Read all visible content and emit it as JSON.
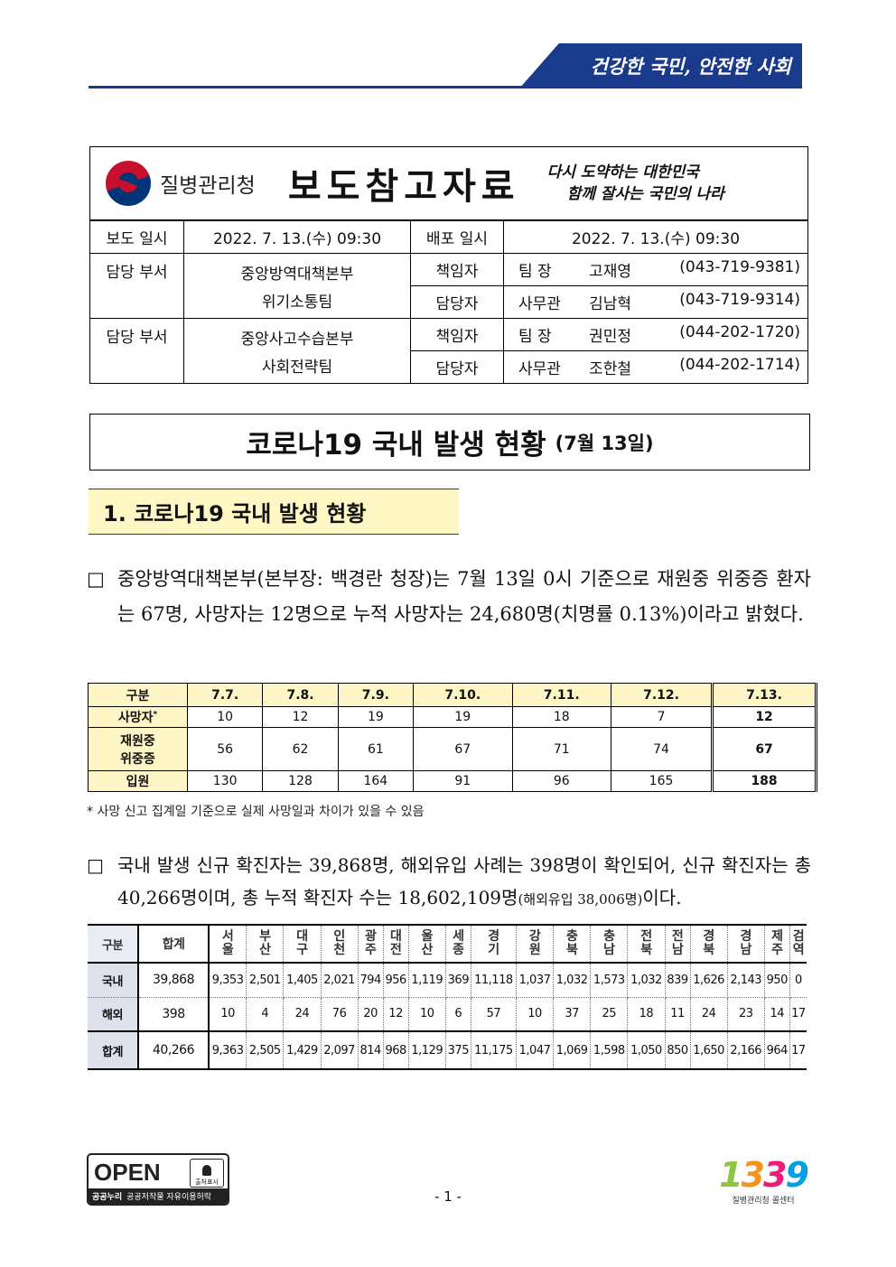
{
  "slogan": "건강한 국민, 안전한 사회",
  "header": {
    "agency": "질병관리청",
    "doc_type": "보도참고자료",
    "motto_line1": "다시 도약하는 대한민국",
    "motto_line2": "함께 잘사는 국민의 나라"
  },
  "info": {
    "report_label": "보도 일시",
    "report_time": "2022. 7. 13.(수) 09:30",
    "dist_label": "배포 일시",
    "dist_time": "2022. 7. 13.(수) 09:30",
    "dept_label": "담당 부서",
    "dept1_line1": "중앙방역대책본부",
    "dept1_line2": "위기소통팀",
    "dept2_line1": "중앙사고수습본부",
    "dept2_line2": "사회전략팀",
    "resp_label": "책임자",
    "staff_label": "담당자",
    "contacts": [
      {
        "title": "팀  장",
        "name": "고재영",
        "phone": "(043-719-9381)"
      },
      {
        "title": "사무관",
        "name": "김남혁",
        "phone": "(043-719-9314)"
      },
      {
        "title": "팀  장",
        "name": "권민정",
        "phone": "(044-202-1720)"
      },
      {
        "title": "사무관",
        "name": "조한철",
        "phone": "(044-202-1714)"
      }
    ]
  },
  "main_title": "코로나19 국내 발생 현황",
  "main_date": "(7월 13일)",
  "section1": "1. 코로나19 국내 발생 현황",
  "bullet": "□",
  "para1": "중앙방역대책본부(본부장: 백경란 청장)는 7월 13일 0시 기준으로 재원중 위중증 환자는 67명, 사망자는 12명으로 누적 사망자는 24,680명(치명률 0.13%)이라고 밝혔다.",
  "stat_table": {
    "header": [
      "구분",
      "7.7.",
      "7.8.",
      "7.9.",
      "7.10.",
      "7.11.",
      "7.12.",
      "7.13."
    ],
    "rows": [
      {
        "label": "사망자",
        "mark": "*",
        "values": [
          "10",
          "12",
          "19",
          "19",
          "18",
          "7",
          "12"
        ]
      },
      {
        "label1": "재원중",
        "label2": "위중증",
        "values": [
          "56",
          "62",
          "61",
          "67",
          "71",
          "74",
          "67"
        ]
      },
      {
        "label": "입원",
        "values": [
          "130",
          "128",
          "164",
          "91",
          "96",
          "165",
          "188"
        ]
      }
    ]
  },
  "footnote": "* 사망 신고 집계일 기준으로 실제 사망일과 차이가 있을 수 있음",
  "para2_main": "국내 발생 신규 확진자는 39,868명, 해외유입 사례는 398명이 확인되어, 신규 확진자는 총 40,266명이며, 총 누적 확진자 수는 18,602,109명",
  "para2_small": "(해외유입 38,006명)",
  "para2_end": "이다.",
  "regional": {
    "label_col": "구분",
    "total_col": "합계",
    "regions": [
      [
        "서",
        "울"
      ],
      [
        "부",
        "산"
      ],
      [
        "대",
        "구"
      ],
      [
        "인",
        "천"
      ],
      [
        "광",
        "주"
      ],
      [
        "대",
        "전"
      ],
      [
        "울",
        "산"
      ],
      [
        "세",
        "종"
      ],
      [
        "경",
        "기"
      ],
      [
        "강",
        "원"
      ],
      [
        "충",
        "북"
      ],
      [
        "충",
        "남"
      ],
      [
        "전",
        "북"
      ],
      [
        "전",
        "남"
      ],
      [
        "경",
        "북"
      ],
      [
        "경",
        "남"
      ],
      [
        "제",
        "주"
      ],
      [
        "검",
        "역"
      ]
    ],
    "rows": [
      {
        "label": "국내",
        "total": "39,868",
        "values": [
          "9,353",
          "2,501",
          "1,405",
          "2,021",
          "794",
          "956",
          "1,119",
          "369",
          "11,118",
          "1,037",
          "1,032",
          "1,573",
          "1,032",
          "839",
          "1,626",
          "2,143",
          "950",
          "0"
        ]
      },
      {
        "label": "해외",
        "total": "398",
        "values": [
          "10",
          "4",
          "24",
          "76",
          "20",
          "12",
          "10",
          "6",
          "57",
          "10",
          "37",
          "25",
          "18",
          "11",
          "24",
          "23",
          "14",
          "17"
        ]
      },
      {
        "label": "합계",
        "total": "40,266",
        "values": [
          "9,363",
          "2,505",
          "1,429",
          "2,097",
          "814",
          "968",
          "1,129",
          "375",
          "11,175",
          "1,047",
          "1,069",
          "1,598",
          "1,050",
          "850",
          "1,650",
          "2,166",
          "964",
          "17"
        ]
      }
    ]
  },
  "footer": {
    "open_word": "OPEN",
    "open_attr": "출처표시",
    "open_bar1": "공공누리",
    "open_bar2": "공공저작물 자유이용허락",
    "page": "- 1 -",
    "call_digits": [
      "1",
      "3",
      "3",
      "9"
    ],
    "call_caption": "질병관리청 콜센터"
  }
}
